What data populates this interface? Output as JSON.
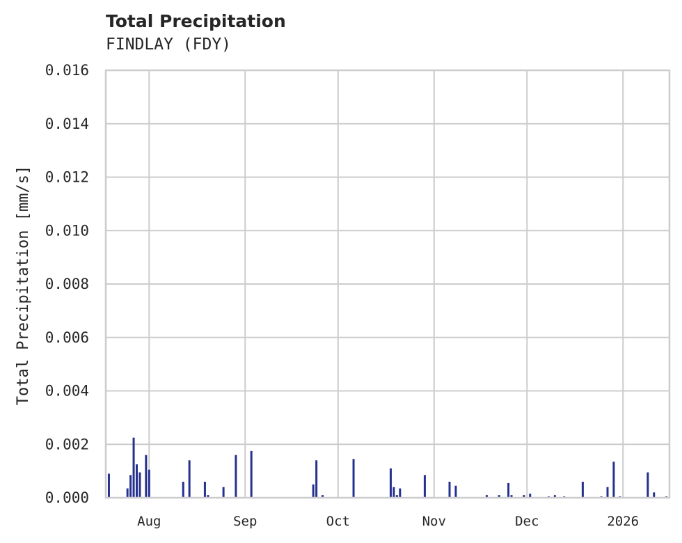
{
  "header": {
    "title": "Total Precipitation",
    "subtitle": "FINDLAY (FDY)"
  },
  "chart_data": {
    "type": "bar",
    "title": "Total Precipitation",
    "subtitle": "FINDLAY (FDY)",
    "xlabel": "",
    "ylabel": "Total Precipitation [mm/s]",
    "ylim": [
      0,
      0.016
    ],
    "yticks": [
      "0.000",
      "0.002",
      "0.004",
      "0.006",
      "0.008",
      "0.010",
      "0.012",
      "0.014",
      "0.016"
    ],
    "xticks": [
      "Aug",
      "Sep",
      "Oct",
      "Nov",
      "Dec",
      "2026"
    ],
    "xrange": [
      "2025-07-18",
      "2026-01-16"
    ],
    "grid": true,
    "legend": null,
    "color": "#25318f",
    "series": [
      {
        "name": "Total Precipitation",
        "points": [
          {
            "date": "2025-07-19",
            "value": 0.0009
          },
          {
            "date": "2025-07-25",
            "value": 0.00035
          },
          {
            "date": "2025-07-26",
            "value": 0.00085
          },
          {
            "date": "2025-07-27",
            "value": 0.00225
          },
          {
            "date": "2025-07-28",
            "value": 0.00125
          },
          {
            "date": "2025-07-29",
            "value": 0.00095
          },
          {
            "date": "2025-07-31",
            "value": 0.0016
          },
          {
            "date": "2025-08-01",
            "value": 0.00105
          },
          {
            "date": "2025-08-12",
            "value": 0.0006
          },
          {
            "date": "2025-08-14",
            "value": 0.0014
          },
          {
            "date": "2025-08-19",
            "value": 0.0006
          },
          {
            "date": "2025-08-20",
            "value": 0.0001
          },
          {
            "date": "2025-08-25",
            "value": 0.0004
          },
          {
            "date": "2025-08-29",
            "value": 0.0016
          },
          {
            "date": "2025-09-03",
            "value": 0.00175
          },
          {
            "date": "2025-09-23",
            "value": 0.0005
          },
          {
            "date": "2025-09-24",
            "value": 0.0014
          },
          {
            "date": "2025-09-26",
            "value": 0.0001
          },
          {
            "date": "2025-10-06",
            "value": 0.00145
          },
          {
            "date": "2025-10-18",
            "value": 0.0011
          },
          {
            "date": "2025-10-19",
            "value": 0.0004
          },
          {
            "date": "2025-10-20",
            "value": 0.0001
          },
          {
            "date": "2025-10-21",
            "value": 0.00035
          },
          {
            "date": "2025-10-29",
            "value": 0.00085
          },
          {
            "date": "2025-11-06",
            "value": 0.0006
          },
          {
            "date": "2025-11-08",
            "value": 0.00045
          },
          {
            "date": "2025-11-18",
            "value": 0.0001
          },
          {
            "date": "2025-11-22",
            "value": 0.0001
          },
          {
            "date": "2025-11-25",
            "value": 0.00055
          },
          {
            "date": "2025-11-26",
            "value": 0.0001
          },
          {
            "date": "2025-11-30",
            "value": 0.0001
          },
          {
            "date": "2025-12-02",
            "value": 0.00015
          },
          {
            "date": "2025-12-08",
            "value": 5e-05
          },
          {
            "date": "2025-12-10",
            "value": 0.0001
          },
          {
            "date": "2025-12-13",
            "value": 5e-05
          },
          {
            "date": "2025-12-19",
            "value": 0.0006
          },
          {
            "date": "2025-12-25",
            "value": 5e-05
          },
          {
            "date": "2025-12-27",
            "value": 0.0004
          },
          {
            "date": "2025-12-29",
            "value": 0.00135
          },
          {
            "date": "2025-12-31",
            "value": 5e-05
          },
          {
            "date": "2026-01-09",
            "value": 0.00095
          },
          {
            "date": "2026-01-11",
            "value": 0.0002
          },
          {
            "date": "2026-01-15",
            "value": 5e-05
          }
        ]
      }
    ]
  }
}
